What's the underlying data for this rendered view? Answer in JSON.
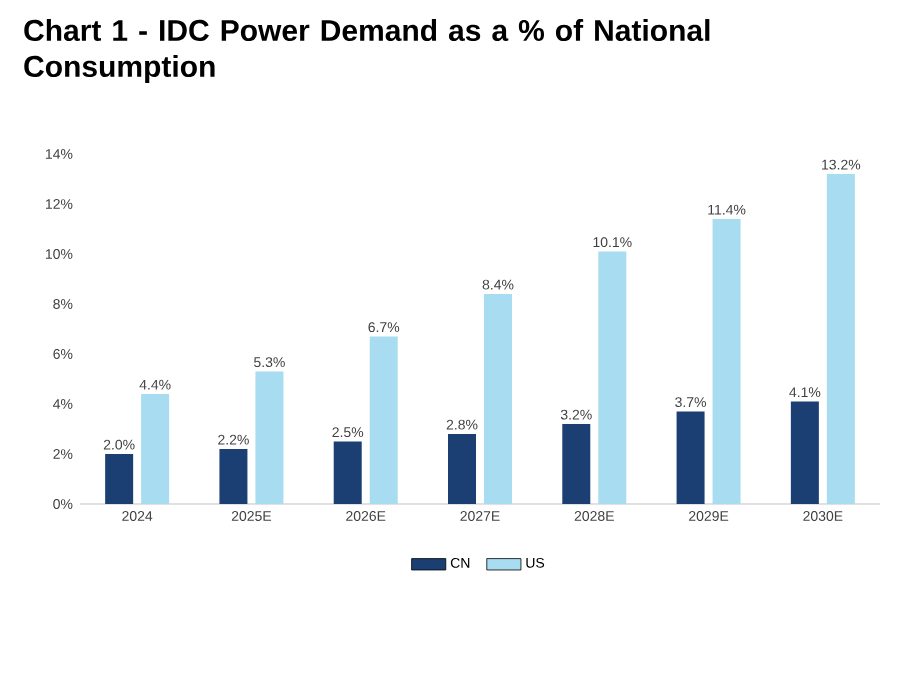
{
  "chart_data": {
    "type": "bar",
    "title": "Chart 1 - IDC Power Demand as a % of National Consumption",
    "categories": [
      "2024",
      "2025E",
      "2026E",
      "2027E",
      "2028E",
      "2029E",
      "2030E"
    ],
    "series": [
      {
        "name": "CN",
        "color": "#1b3f73",
        "values": [
          2.0,
          2.2,
          2.5,
          2.8,
          3.2,
          3.7,
          4.1
        ],
        "value_labels": [
          "2.0%",
          "2.2%",
          "2.5%",
          "2.8%",
          "3.2%",
          "3.7%",
          "4.1%"
        ]
      },
      {
        "name": "US",
        "color": "#a8dcf0",
        "values": [
          4.4,
          5.3,
          6.7,
          8.4,
          10.1,
          11.4,
          13.2
        ],
        "value_labels": [
          "4.4%",
          "5.3%",
          "6.7%",
          "8.4%",
          "10.1%",
          "11.4%",
          "13.2%"
        ]
      }
    ],
    "ylim": [
      0,
      14
    ],
    "yticks": [
      {
        "value": 0,
        "label": "0%"
      },
      {
        "value": 2,
        "label": "2%"
      },
      {
        "value": 4,
        "label": "4%"
      },
      {
        "value": 6,
        "label": "6%"
      },
      {
        "value": 8,
        "label": "8%"
      },
      {
        "value": 10,
        "label": "10%"
      },
      {
        "value": 12,
        "label": "12%"
      },
      {
        "value": 14,
        "label": "14%"
      }
    ],
    "grid": false,
    "legend": "bottom"
  }
}
